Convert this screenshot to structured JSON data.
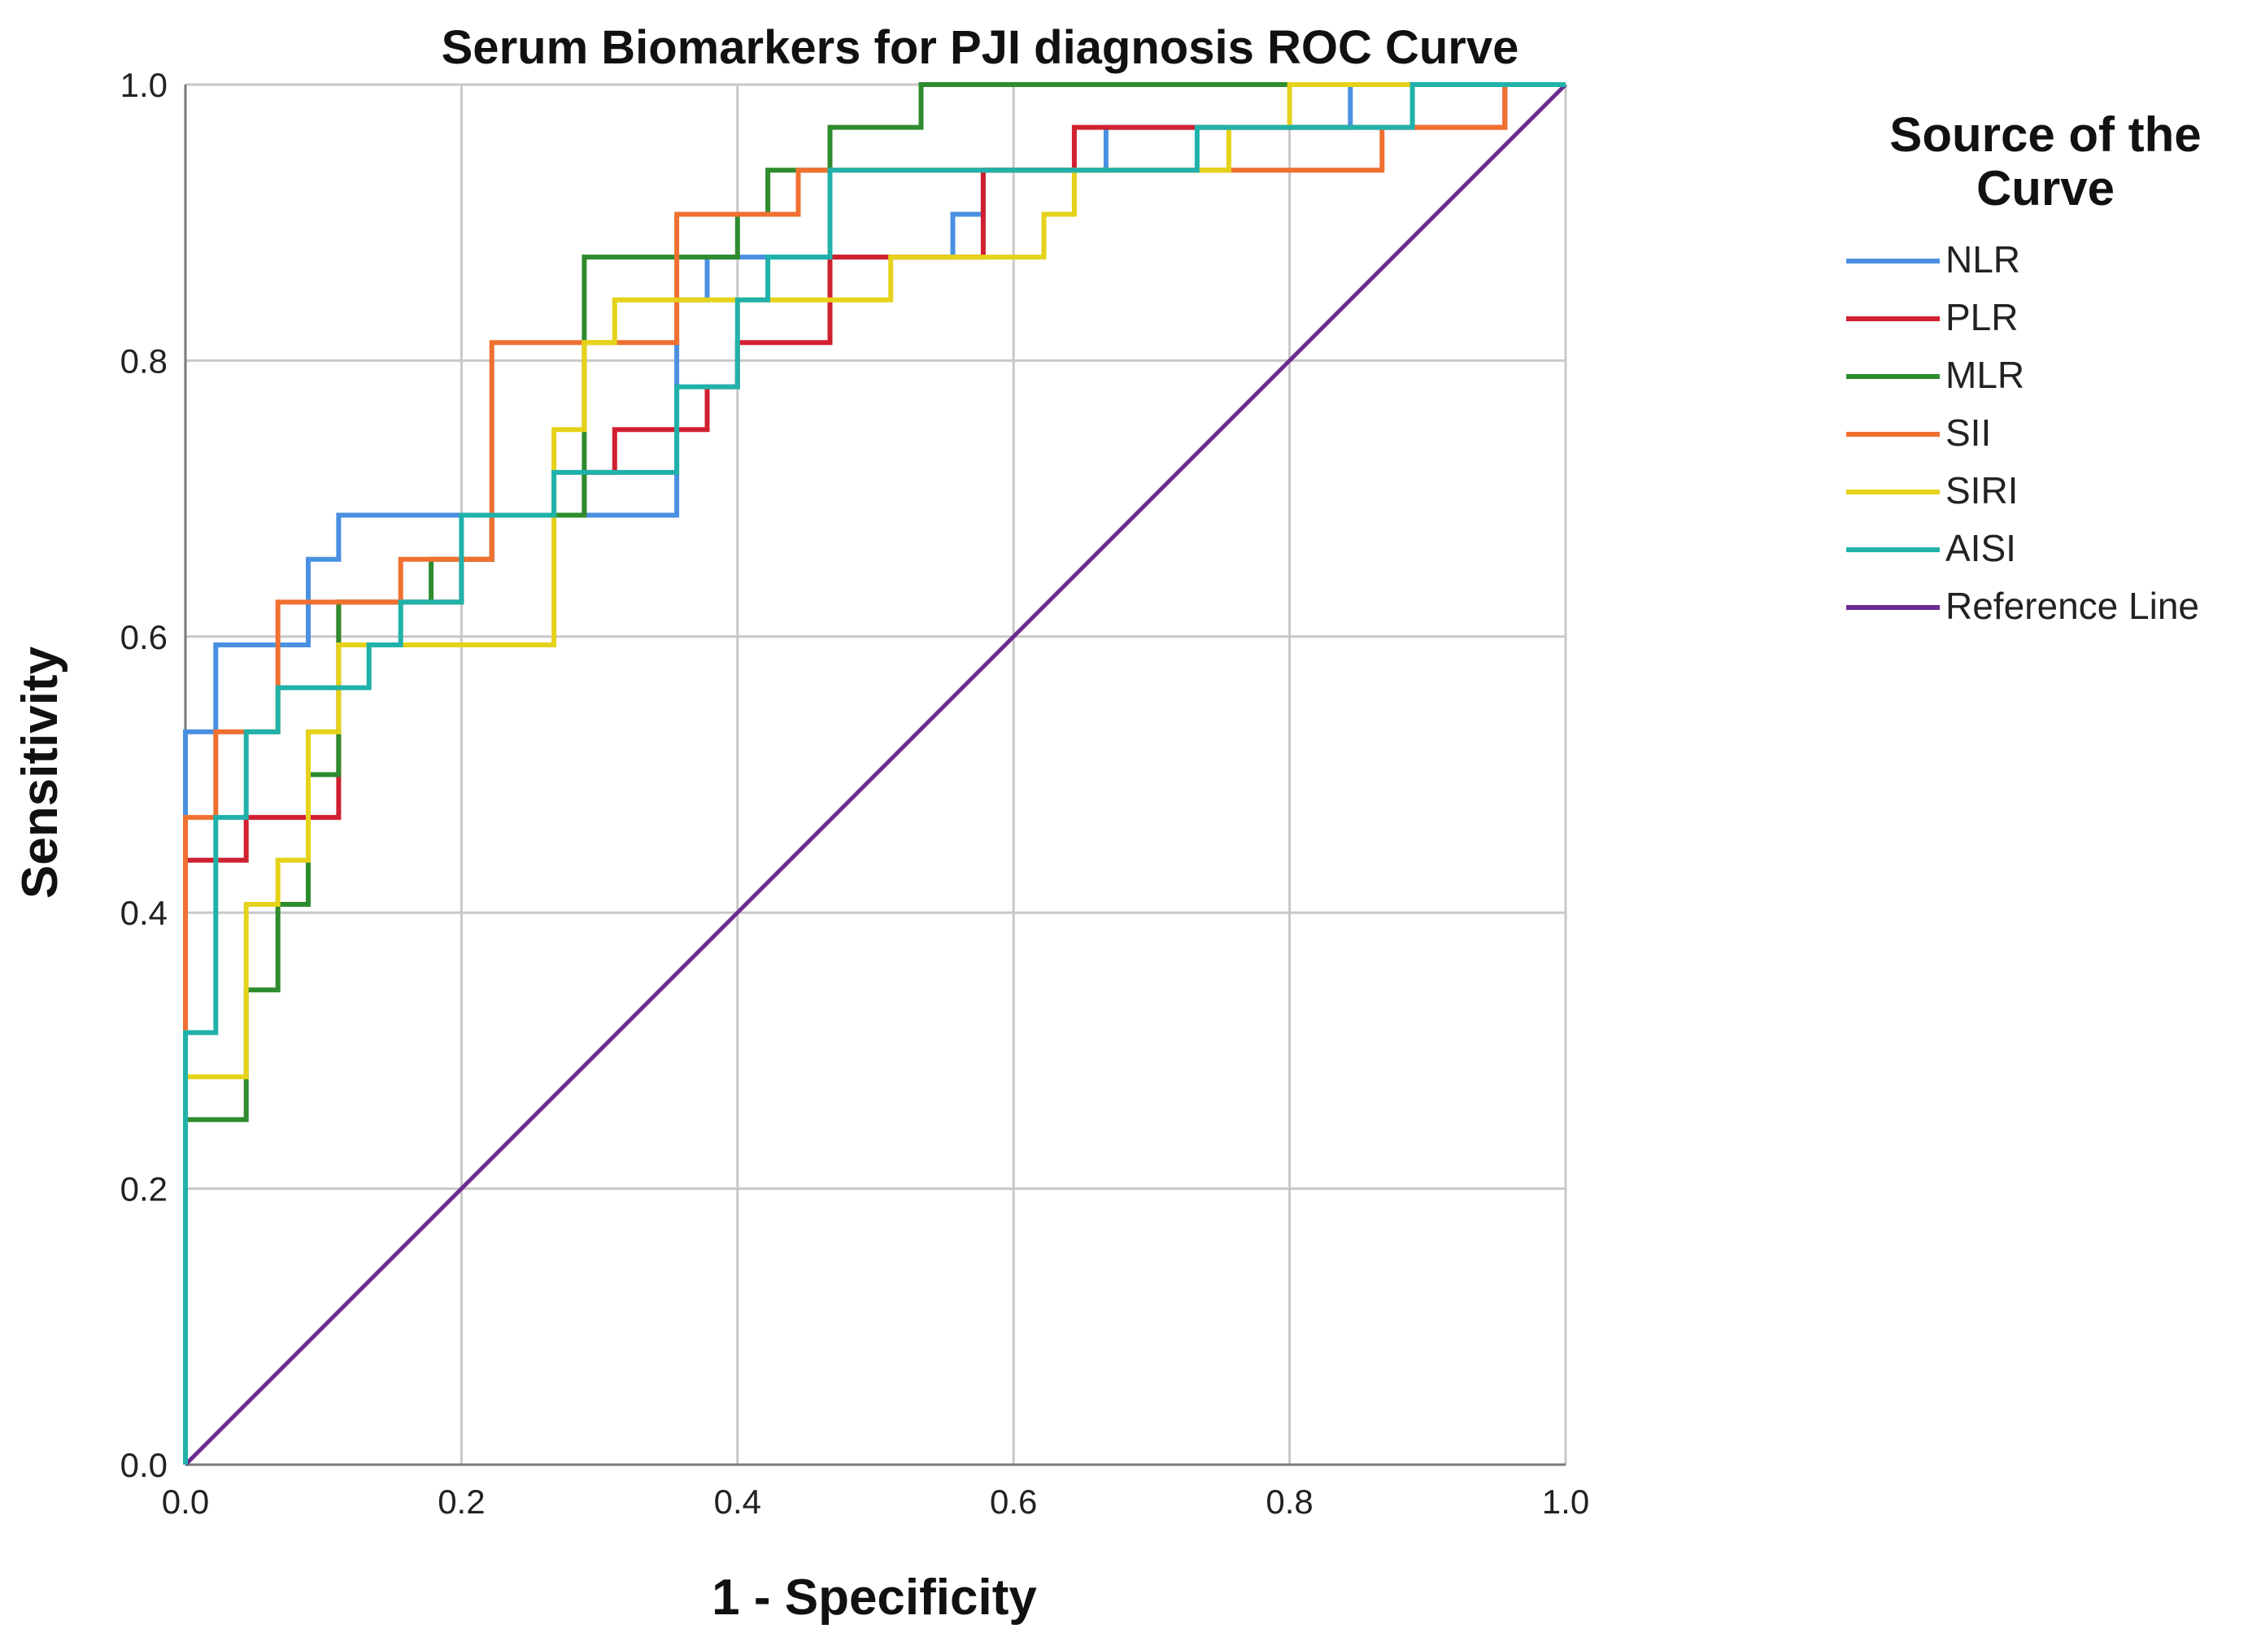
{
  "chart_data": {
    "type": "line",
    "title": "Serum Biomarkers for PJI diagnosis ROC Curve",
    "xlabel": "1 - Specificity",
    "ylabel": "Sensitivity",
    "xlim": [
      0,
      1
    ],
    "ylim": [
      0,
      1
    ],
    "xticks": [
      "0.0",
      "0.2",
      "0.4",
      "0.6",
      "0.8",
      "1.0"
    ],
    "yticks": [
      "0.0",
      "0.2",
      "0.4",
      "0.6",
      "0.8",
      "1.0"
    ],
    "grid": true,
    "legend": {
      "title_line1": "Source of the",
      "title_line2": "Curve",
      "placement": "right"
    },
    "series": [
      {
        "name": "NLR",
        "color": "#4a90e2",
        "x": [
          0,
          0,
          0.022,
          0.022,
          0.089,
          0.089,
          0.111,
          0.111,
          0.356,
          0.356,
          0.378,
          0.378,
          0.556,
          0.556,
          0.578,
          0.578,
          0.667,
          0.667,
          0.844,
          0.844,
          1.0
        ],
        "y": [
          0,
          0.531,
          0.531,
          0.594,
          0.594,
          0.656,
          0.656,
          0.688,
          0.688,
          0.844,
          0.844,
          0.875,
          0.875,
          0.906,
          0.906,
          0.938,
          0.938,
          0.969,
          0.969,
          1.0,
          1.0
        ]
      },
      {
        "name": "PLR",
        "color": "#d0202f",
        "x": [
          0,
          0,
          0.044,
          0.044,
          0.111,
          0.111,
          0.2,
          0.2,
          0.222,
          0.222,
          0.289,
          0.289,
          0.311,
          0.311,
          0.378,
          0.378,
          0.4,
          0.4,
          0.467,
          0.467,
          0.578,
          0.578,
          0.644,
          0.644,
          0.956,
          0.956,
          1.0
        ],
        "y": [
          0,
          0.438,
          0.438,
          0.469,
          0.469,
          0.625,
          0.625,
          0.656,
          0.656,
          0.688,
          0.688,
          0.719,
          0.719,
          0.75,
          0.75,
          0.781,
          0.781,
          0.813,
          0.813,
          0.875,
          0.875,
          0.938,
          0.938,
          0.969,
          0.969,
          1.0,
          1.0
        ]
      },
      {
        "name": "MLR",
        "color": "#2e8b2e",
        "x": [
          0,
          0,
          0.044,
          0.044,
          0.067,
          0.067,
          0.089,
          0.089,
          0.111,
          0.111,
          0.178,
          0.178,
          0.222,
          0.222,
          0.289,
          0.289,
          0.4,
          0.4,
          0.422,
          0.422,
          0.467,
          0.467,
          0.533,
          0.533,
          0.644,
          0.644,
          1.0
        ],
        "y": [
          0,
          0.25,
          0.25,
          0.344,
          0.344,
          0.406,
          0.406,
          0.5,
          0.5,
          0.625,
          0.625,
          0.656,
          0.656,
          0.688,
          0.688,
          0.875,
          0.875,
          0.906,
          0.906,
          0.938,
          0.938,
          0.969,
          0.969,
          1.0,
          1.0,
          1.0,
          1.0
        ]
      },
      {
        "name": "SII",
        "color": "#f07030",
        "x": [
          0,
          0,
          0.022,
          0.022,
          0.067,
          0.067,
          0.156,
          0.156,
          0.222,
          0.222,
          0.356,
          0.356,
          0.444,
          0.444,
          0.867,
          0.867,
          0.956,
          0.956,
          1.0
        ],
        "y": [
          0,
          0.469,
          0.469,
          0.531,
          0.531,
          0.625,
          0.625,
          0.656,
          0.656,
          0.813,
          0.813,
          0.906,
          0.906,
          0.938,
          0.938,
          0.969,
          0.969,
          1.0,
          1.0
        ]
      },
      {
        "name": "SIRI",
        "color": "#e6d21a",
        "x": [
          0,
          0,
          0.044,
          0.044,
          0.067,
          0.067,
          0.089,
          0.089,
          0.111,
          0.111,
          0.267,
          0.267,
          0.289,
          0.289,
          0.311,
          0.311,
          0.422,
          0.422,
          0.511,
          0.511,
          0.622,
          0.622,
          0.644,
          0.644,
          0.756,
          0.756,
          0.8,
          0.8,
          1.0
        ],
        "y": [
          0,
          0.281,
          0.281,
          0.406,
          0.406,
          0.438,
          0.438,
          0.531,
          0.531,
          0.594,
          0.594,
          0.75,
          0.75,
          0.813,
          0.813,
          0.844,
          0.844,
          0.844,
          0.844,
          0.875,
          0.875,
          0.906,
          0.906,
          0.938,
          0.938,
          0.969,
          0.969,
          1.0,
          1.0
        ]
      },
      {
        "name": "AISI",
        "color": "#20b2aa",
        "x": [
          0,
          0,
          0.022,
          0.022,
          0.044,
          0.044,
          0.067,
          0.067,
          0.133,
          0.133,
          0.156,
          0.156,
          0.2,
          0.2,
          0.267,
          0.267,
          0.356,
          0.356,
          0.4,
          0.4,
          0.422,
          0.422,
          0.467,
          0.467,
          0.733,
          0.733,
          0.889,
          0.889,
          1.0
        ],
        "y": [
          0,
          0.313,
          0.313,
          0.469,
          0.469,
          0.531,
          0.531,
          0.563,
          0.563,
          0.594,
          0.594,
          0.625,
          0.625,
          0.688,
          0.688,
          0.719,
          0.719,
          0.781,
          0.781,
          0.844,
          0.844,
          0.875,
          0.875,
          0.938,
          0.938,
          0.969,
          0.969,
          1.0,
          1.0
        ]
      },
      {
        "name": "Reference Line",
        "color": "#6a2c91",
        "x": [
          0,
          1.0
        ],
        "y": [
          0,
          1.0
        ]
      }
    ]
  }
}
